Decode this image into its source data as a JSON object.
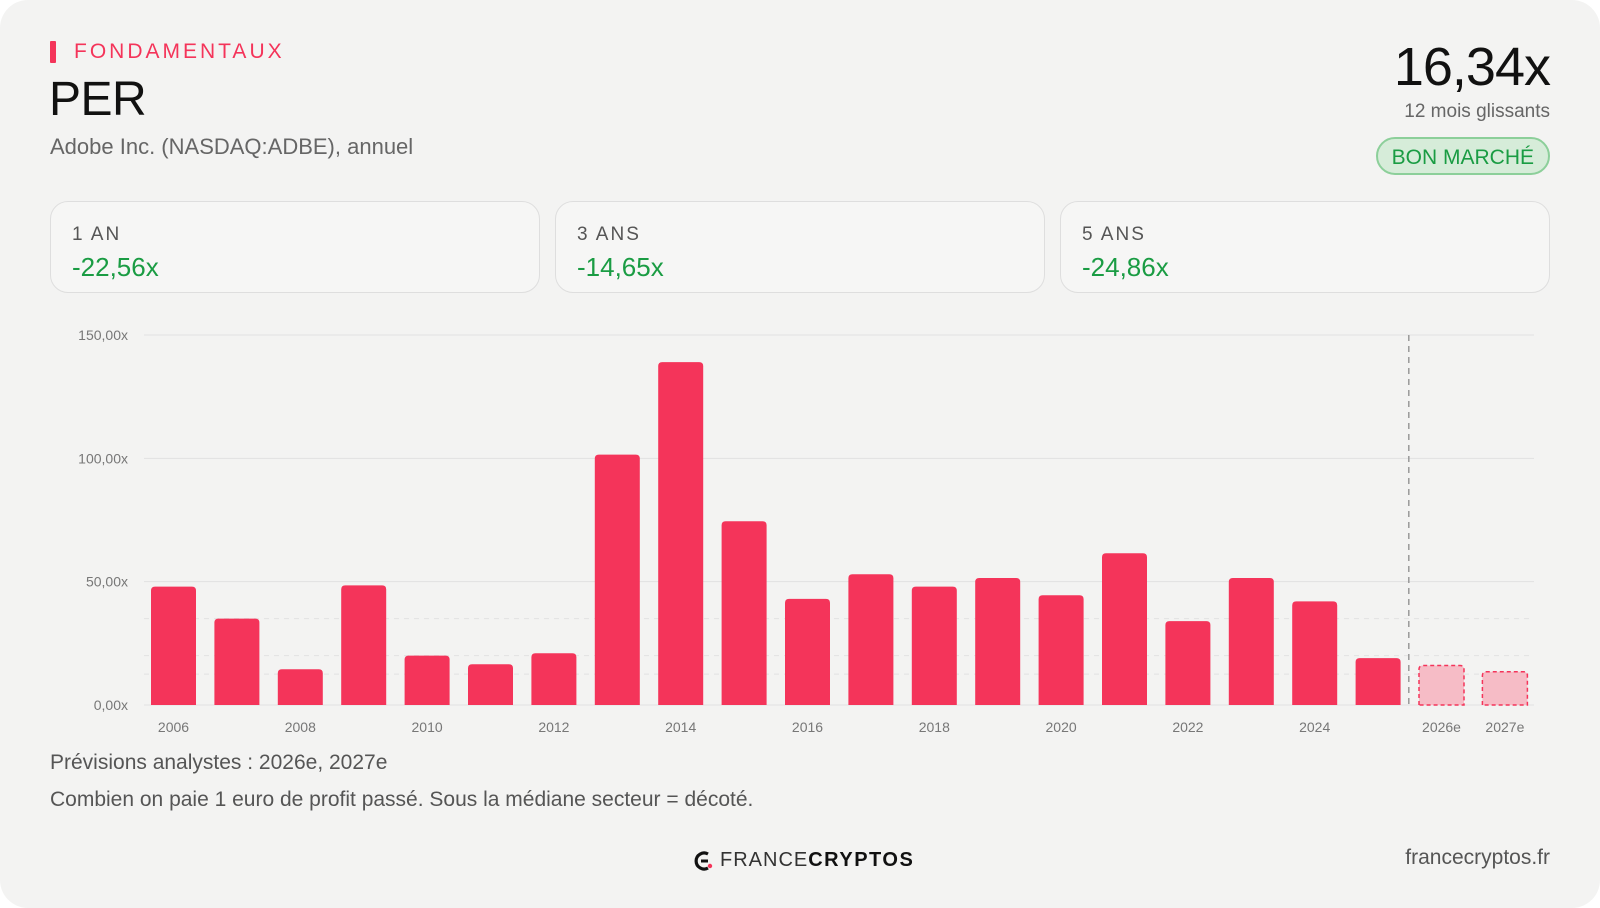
{
  "header": {
    "eyebrow": "FONDAMENTAUX",
    "title": "PER",
    "subtitle": "Adobe Inc. (NASDAQ:ADBE), annuel",
    "current_value": "16,34x",
    "current_caption": "12 mois glissants",
    "badge": "BON MARCHÉ"
  },
  "stats": [
    {
      "label": "1 AN",
      "value": "-22,56x"
    },
    {
      "label": "3 ANS",
      "value": "-14,65x"
    },
    {
      "label": "5 ANS",
      "value": "-24,86x"
    }
  ],
  "colors": {
    "accent": "#f4345a",
    "forecast_fill": "#f6bcc6",
    "positive": "#1a9c43"
  },
  "chart_data": {
    "type": "bar",
    "categories": [
      "2006",
      "2007",
      "2008",
      "2009",
      "2010",
      "2011",
      "2012",
      "2013",
      "2014",
      "2015",
      "2016",
      "2017",
      "2018",
      "2019",
      "2020",
      "2021",
      "2022",
      "2023",
      "2024",
      "2025",
      "2026e",
      "2027e"
    ],
    "tick_labels": [
      "2006",
      "",
      "2008",
      "",
      "2010",
      "",
      "2012",
      "",
      "2014",
      "",
      "2016",
      "",
      "2018",
      "",
      "2020",
      "",
      "2022",
      "",
      "2024",
      "",
      "2026e",
      "2027e"
    ],
    "values": [
      48,
      35,
      14.5,
      48.5,
      20,
      16.5,
      21,
      101.5,
      139,
      74.5,
      43,
      53,
      48,
      51.5,
      44.5,
      61.5,
      34,
      51.5,
      42,
      19,
      16,
      13.5
    ],
    "forecast": [
      false,
      false,
      false,
      false,
      false,
      false,
      false,
      false,
      false,
      false,
      false,
      false,
      false,
      false,
      false,
      false,
      false,
      false,
      false,
      false,
      true,
      true
    ],
    "yticks": [
      0,
      50,
      100,
      150
    ],
    "ytick_labels": [
      "0,00x",
      "50,00x",
      "100,00x",
      "150,00x"
    ],
    "ylim": [
      0,
      150
    ],
    "grid": true
  },
  "notes": {
    "forecast": "Prévisions analystes : 2026e, 2027e",
    "explanation": "Combien on paie 1 euro de profit passé. Sous la médiane secteur = décoté."
  },
  "footer": {
    "brand_light": "FRANCE",
    "brand_bold": "CRYPTOS",
    "site": "francecryptos.fr"
  }
}
